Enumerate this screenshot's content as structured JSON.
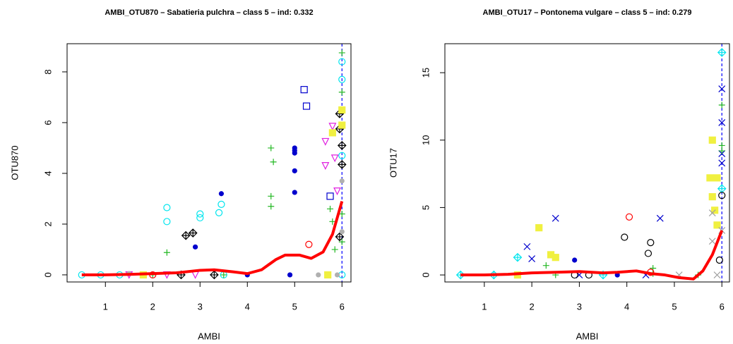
{
  "chart_data": [
    {
      "type": "scatter",
      "title": "AMBI_OTU870 – Sabatieria pulchra – class 5 – ind: 0.332",
      "x_label": "AMBI",
      "y_label": "OTU870",
      "xlim": [
        0.19,
        6.19
      ],
      "ylim": [
        -0.28,
        9.11
      ],
      "xticks": [
        1,
        2,
        3,
        4,
        5,
        6
      ],
      "yticks": [
        0,
        2,
        4,
        6,
        8
      ],
      "vline": 6,
      "vline_color": "#0000ff",
      "series": [
        {
          "mode": "points",
          "marker": "circle",
          "filled": false,
          "color": "#00e5ee",
          "x": [
            2.3,
            2.3,
            3.0,
            3.0,
            3.4,
            3.45,
            6,
            6,
            6,
            0.5,
            0.9,
            1.3,
            3.5,
            6
          ],
          "y": [
            2.65,
            2.1,
            2.4,
            2.25,
            2.45,
            2.78,
            8.4,
            7.7,
            4.7,
            0,
            0,
            0,
            0,
            0
          ]
        },
        {
          "mode": "points",
          "marker": "circle",
          "filled": true,
          "color": "#0000cd",
          "x": [
            2.9,
            3.45,
            5,
            5,
            5,
            5,
            5,
            4.0,
            4.9
          ],
          "y": [
            1.1,
            3.2,
            5.0,
            4.9,
            4.8,
            4.1,
            3.25,
            0,
            0
          ]
        },
        {
          "mode": "points",
          "marker": "square",
          "filled": false,
          "color": "#0000cd",
          "x": [
            5.2,
            5.25,
            5.75
          ],
          "y": [
            7.3,
            6.65,
            3.1
          ]
        },
        {
          "mode": "points",
          "marker": "plus",
          "filled": false,
          "color": "#22b822",
          "x": [
            2.3,
            4.5,
            4.55,
            4.5,
            4.5,
            5.75,
            5.8,
            5.85,
            6,
            6,
            6,
            6,
            2,
            3.5
          ],
          "y": [
            0.88,
            5.0,
            4.45,
            3.1,
            2.7,
            2.6,
            2.1,
            1.0,
            8.75,
            7.2,
            2.4,
            1.3,
            0,
            0
          ]
        },
        {
          "mode": "points",
          "marker": "triangle",
          "filled": false,
          "color": "#e020e0",
          "x": [
            5.65,
            5.65,
            5.8,
            5.85,
            5.9,
            1.5,
            2.3,
            2.9
          ],
          "y": [
            5.25,
            4.3,
            5.85,
            4.6,
            3.3,
            0,
            0,
            0
          ]
        },
        {
          "mode": "points",
          "marker": "diamond",
          "filled": false,
          "color": "#000000",
          "x": [
            2.7,
            2.85,
            5.95,
            5.95,
            6,
            6,
            5.95,
            2.6,
            3.3
          ],
          "y": [
            1.55,
            1.65,
            6.35,
            5.75,
            5.1,
            4.35,
            1.5,
            0,
            0
          ]
        },
        {
          "mode": "points",
          "marker": "circle",
          "filled": false,
          "color": "#ff0000",
          "x": [
            5.3,
            2.0
          ],
          "y": [
            1.2,
            0
          ]
        },
        {
          "mode": "points",
          "marker": "square",
          "filled": true,
          "color": "#f0f040",
          "x": [
            6,
            6,
            5.8,
            1.8,
            5.7
          ],
          "y": [
            6.5,
            5.9,
            5.6,
            0,
            0
          ]
        },
        {
          "mode": "points",
          "marker": "circle",
          "filled": true,
          "color": "#b0b0b0",
          "x": [
            6,
            6,
            1.5,
            5.5,
            5.9
          ],
          "y": [
            3.7,
            1.7,
            0.05,
            0,
            0
          ]
        },
        {
          "mode": "line",
          "color": "#ff0000",
          "x": [
            0.5,
            1,
            1.5,
            2,
            2.5,
            3,
            3.3,
            3.7,
            4,
            4.3,
            4.6,
            4.8,
            5.1,
            5.35,
            5.6,
            5.8,
            6
          ],
          "y": [
            0,
            0,
            0.02,
            0.05,
            0.08,
            0.18,
            0.2,
            0.12,
            0.05,
            0.2,
            0.6,
            0.78,
            0.78,
            0.65,
            0.9,
            1.6,
            2.9
          ]
        }
      ]
    },
    {
      "type": "scatter",
      "title": "AMBI_OTU17 – Pontonema vulgare – class 5 – ind: 0.279",
      "x_label": "AMBI",
      "y_label": "OTU17",
      "xlim": [
        0.17,
        6.16
      ],
      "ylim": [
        -0.52,
        17.15
      ],
      "xticks": [
        1,
        2,
        3,
        4,
        5,
        6
      ],
      "yticks": [
        0,
        5,
        10,
        15
      ],
      "vline": 6,
      "vline_color": "#0000ff",
      "series": [
        {
          "mode": "points",
          "marker": "diamond",
          "filled": false,
          "color": "#00e5ee",
          "x": [
            1.7,
            6,
            6,
            0.5,
            1.2,
            3.5
          ],
          "y": [
            1.3,
            16.5,
            6.4,
            0,
            0,
            0
          ]
        },
        {
          "mode": "points",
          "marker": "x",
          "filled": false,
          "color": "#0000cd",
          "x": [
            1.9,
            2.0,
            2.5,
            4.7,
            6,
            6,
            6,
            6,
            3,
            4.4
          ],
          "y": [
            2.1,
            1.2,
            4.2,
            4.2,
            13.8,
            11.3,
            9.0,
            8.3,
            0,
            0
          ]
        },
        {
          "mode": "points",
          "marker": "circle",
          "filled": true,
          "color": "#0000cd",
          "x": [
            2.9,
            3.8
          ],
          "y": [
            1.1,
            0
          ]
        },
        {
          "mode": "points",
          "marker": "plus",
          "filled": false,
          "color": "#22b822",
          "x": [
            2.3,
            4.55,
            4.55,
            6,
            6,
            6,
            2.5,
            5.5
          ],
          "y": [
            0.7,
            0.1,
            0.5,
            12.6,
            9.6,
            9.2,
            0,
            0
          ]
        },
        {
          "mode": "points",
          "marker": "square",
          "filled": true,
          "color": "#f0f040",
          "x": [
            2.15,
            2.4,
            2.5,
            5.8,
            5.75,
            5.9,
            5.8,
            5.85,
            5.9,
            1.7
          ],
          "y": [
            3.5,
            1.5,
            1.3,
            10.0,
            7.2,
            7.2,
            5.8,
            4.8,
            3.7,
            0
          ]
        },
        {
          "mode": "points",
          "marker": "circle",
          "filled": false,
          "color": "#000000",
          "x": [
            3.95,
            4.45,
            4.5,
            5.95,
            6,
            3.2,
            2.9
          ],
          "y": [
            2.8,
            1.6,
            2.4,
            1.1,
            5.9,
            0,
            0
          ]
        },
        {
          "mode": "points",
          "marker": "circle",
          "filled": false,
          "color": "#ff0000",
          "x": [
            4.05,
            4.5
          ],
          "y": [
            4.3,
            0.2
          ]
        },
        {
          "mode": "points",
          "marker": "x",
          "filled": false,
          "color": "#a0a0a0",
          "x": [
            5.8,
            5.8,
            6,
            5.1,
            5.9
          ],
          "y": [
            4.6,
            2.5,
            3.3,
            0,
            0
          ]
        },
        {
          "mode": "line",
          "color": "#ff0000",
          "x": [
            0.5,
            1,
            1.5,
            2,
            2.5,
            3,
            3.5,
            3.8,
            4.2,
            4.5,
            4.8,
            5.1,
            5.4,
            5.6,
            5.8,
            6
          ],
          "y": [
            0,
            0,
            0.05,
            0.15,
            0.2,
            0.25,
            0.15,
            0.2,
            0.3,
            0.1,
            0,
            -0.2,
            -0.3,
            0.3,
            1.5,
            3.3
          ]
        }
      ]
    }
  ]
}
